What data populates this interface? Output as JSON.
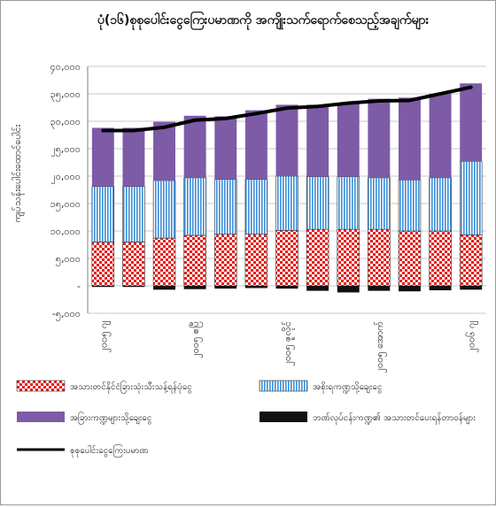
{
  "chart_data": {
    "type": "bar",
    "title": "ပုံ(၁၆)စုစုပေါင်းငွေကြေးပမာဏကို အကျိုးသက်ရောက်စေသည့်အချက်များ",
    "ylabel": "ကျပ်သန်းပေါင်းထောင်ပေါင်း",
    "xlabel": "",
    "ylim": [
      -5000,
      40000
    ],
    "y_ticks": [
      "-၅,၀၀၀",
      "-",
      "၅,၀၀၀",
      "၁၀,၀၀၀",
      "၁၅,၀၀၀",
      "၂၀,၀၀၀",
      "၂၅,၀၀၀",
      "၃၀,၀၀၀",
      "၃၅,၀၀၀",
      "၄၀,၀၀၀"
    ],
    "y_tick_values": [
      -5000,
      0,
      5000,
      10000,
      15000,
      20000,
      25000,
      30000,
      35000,
      40000
    ],
    "x_tick_labels": [
      {
        "index": 0,
        "label": "၂၀၀၅ ဂျ"
      },
      {
        "index": 3,
        "label": "၂၀၀၅ ဧပြီ"
      },
      {
        "index": 6,
        "label": "၂၀၀၅ ဇူလိုင်"
      },
      {
        "index": 9,
        "label": "၂၀၀၅ အောက်"
      },
      {
        "index": 12,
        "label": "၂၀၀၆ ဂျ"
      }
    ],
    "grid": true,
    "legend_position": "bottom",
    "series": [
      {
        "name": "အသားတင်နိုင်ငံခြားသုံးသီးသန့်ရန်ပုံငွေ",
        "kind": "bar",
        "color": "#e6201b",
        "values": [
          8000,
          8000,
          8700,
          9200,
          9400,
          9400,
          10100,
          10300,
          10300,
          10300,
          10000,
          10000,
          9300
        ]
      },
      {
        "name": "အစိုးရကဏ္ဍသို့ချေးငွေ",
        "kind": "bar",
        "color": "#3b8ed8",
        "values": [
          10100,
          10100,
          10500,
          10500,
          10000,
          10000,
          9900,
          9600,
          9600,
          9400,
          9300,
          9700,
          13400
        ]
      },
      {
        "name": "အခြားကဏ္ဍများသို့ချေးငွေ",
        "kind": "bar",
        "color": "#7d5ba6",
        "values": [
          10700,
          10700,
          10700,
          11300,
          11500,
          12600,
          13000,
          13100,
          13500,
          14400,
          15000,
          15300,
          14200
        ]
      },
      {
        "name": "ဘဏ်လုပ်ငန်းကဏ္ဍ၏ အသားတင်ပေးရန်တာဝန်များ",
        "kind": "bar",
        "color": "#111111",
        "values": [
          -200,
          -200,
          -700,
          -600,
          -500,
          -400,
          -500,
          -900,
          -1200,
          -900,
          -1000,
          -800,
          -700
        ]
      },
      {
        "name": "စုစုပေါင်းငွေကြေးပမာဏ",
        "kind": "line",
        "color": "#000000",
        "values": [
          28300,
          28300,
          28900,
          30200,
          30500,
          31400,
          32400,
          32700,
          33300,
          33700,
          33800,
          35000,
          36200
        ]
      }
    ]
  }
}
